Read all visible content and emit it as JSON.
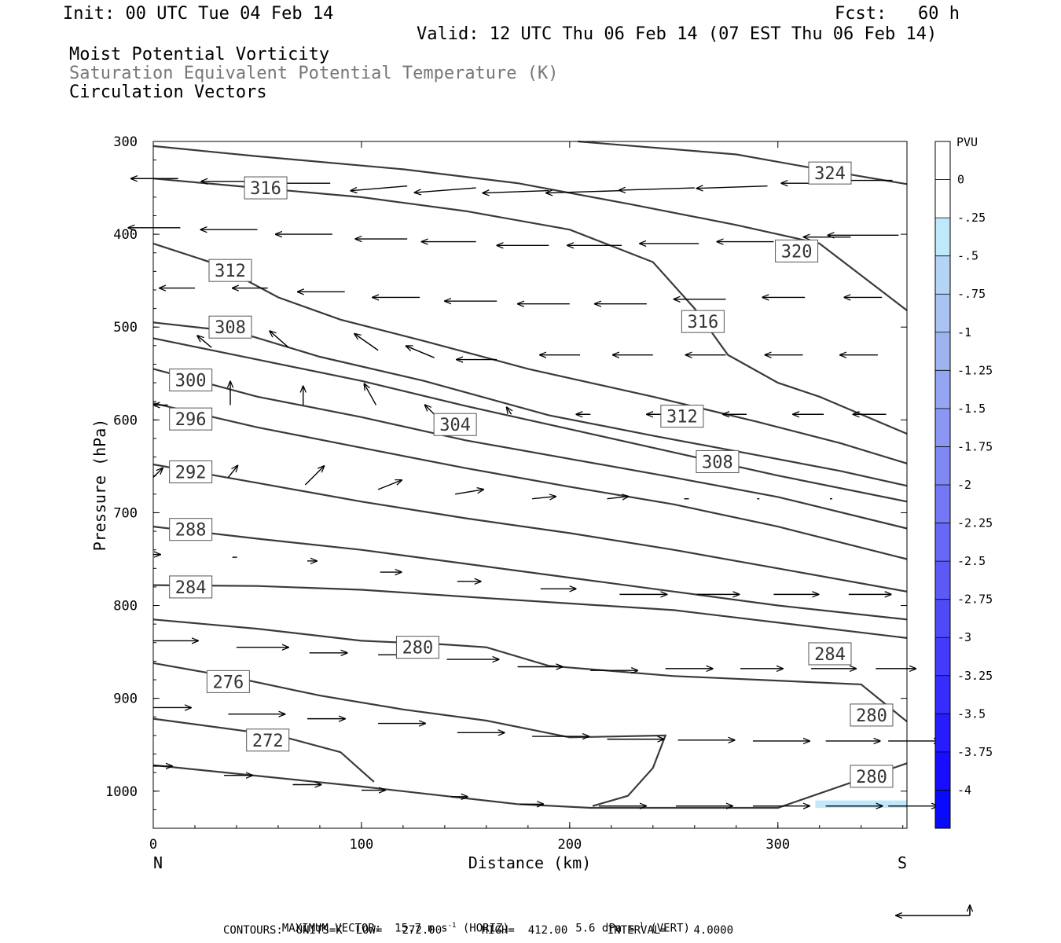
{
  "header": {
    "init": "Init: 00 UTC Tue 04 Feb 14",
    "fcst": "Fcst:   60 h",
    "valid": "Valid: 12 UTC Thu 06 Feb 14 (07 EST Thu 06 Feb 14)",
    "field1": "Moist Potential Vorticity",
    "field2": "Saturation Equivalent Potential Temperature (K)",
    "field3": "Circulation Vectors"
  },
  "footer": {
    "max_vector_label": "MAXIMUM VECTOR:",
    "horiz": "15.7 m s",
    "horiz_unit": "(HORIZ)",
    "vert": "5.6 dPa s",
    "vert_unit": "(VERT)",
    "exp": "-1",
    "contours": "CONTOURS:  UNITS=K  LOW=   272.00      HIGH=  412.00      INTERVAL=    4.0000"
  },
  "chart_data": {
    "type": "cross-section",
    "xlabel": "Distance (km)",
    "ylabel": "Pressure (hPa)",
    "xlim": [
      0,
      362
    ],
    "ylim": [
      1040,
      300
    ],
    "x_ticks": [
      0,
      100,
      200,
      300
    ],
    "y_ticks": [
      300,
      400,
      500,
      600,
      700,
      800,
      900,
      1000
    ],
    "left_end_label": "N",
    "right_end_label": "S",
    "colorbar": {
      "title": "PVU",
      "levels": [
        "0",
        "-.25",
        "-.5",
        "-.75",
        "-1",
        "-1.25",
        "-1.5",
        "-1.75",
        "-2",
        "-2.25",
        "-2.5",
        "-2.75",
        "-3",
        "-3.25",
        "-3.5",
        "-3.75",
        "-4"
      ],
      "colors": [
        "#ffffff",
        "#ffffff",
        "#bfe8fb",
        "#b3d4f5",
        "#a9c4f2",
        "#9eb4f1",
        "#94a5f1",
        "#8b97f2",
        "#7f88f3",
        "#7478f4",
        "#6868f6",
        "#5c59f7",
        "#4f4af8",
        "#433bf9",
        "#362cfb",
        "#271cfc",
        "#180efd",
        "#0909fe"
      ]
    },
    "contours": [
      {
        "label": "324",
        "points": [
          [
            204,
            300
          ],
          [
            280,
            314
          ],
          [
            320,
            330
          ],
          [
            362,
            346
          ]
        ],
        "labels_at": [
          [
            325,
            334
          ]
        ]
      },
      {
        "label": "320",
        "points": [
          [
            0,
            305
          ],
          [
            50,
            316
          ],
          [
            120,
            330
          ],
          [
            175,
            345
          ],
          [
            230,
            368
          ],
          [
            280,
            390
          ],
          [
            320,
            410
          ],
          [
            362,
            482
          ]
        ],
        "labels_at": [
          [
            309,
            418
          ]
        ]
      },
      {
        "label": "316",
        "points": [
          [
            0,
            340
          ],
          [
            50,
            350
          ],
          [
            100,
            360
          ],
          [
            150,
            375
          ],
          [
            200,
            395
          ],
          [
            240,
            430
          ],
          [
            260,
            480
          ],
          [
            276,
            530
          ],
          [
            300,
            560
          ],
          [
            320,
            575
          ],
          [
            362,
            615
          ]
        ],
        "labels_at": [
          [
            54,
            350
          ],
          [
            264,
            494
          ]
        ]
      },
      {
        "label": "312",
        "points": [
          [
            0,
            410
          ],
          [
            30,
            432
          ],
          [
            60,
            468
          ],
          [
            90,
            492
          ],
          [
            130,
            515
          ],
          [
            180,
            545
          ],
          [
            240,
            575
          ],
          [
            290,
            602
          ],
          [
            330,
            625
          ],
          [
            362,
            647
          ]
        ],
        "labels_at": [
          [
            37,
            439
          ],
          [
            254,
            596
          ]
        ]
      },
      {
        "label": "308",
        "points": [
          [
            0,
            495
          ],
          [
            40,
            505
          ],
          [
            80,
            532
          ],
          [
            130,
            558
          ],
          [
            190,
            595
          ],
          [
            240,
            617
          ],
          [
            290,
            638
          ],
          [
            330,
            655
          ],
          [
            362,
            671
          ]
        ],
        "labels_at": [
          [
            37,
            500
          ],
          [
            271,
            645
          ]
        ]
      },
      {
        "label": "304",
        "points": [
          [
            0,
            512
          ],
          [
            50,
            535
          ],
          [
            100,
            558
          ],
          [
            150,
            585
          ],
          [
            200,
            610
          ],
          [
            250,
            635
          ],
          [
            300,
            660
          ],
          [
            362,
            688
          ]
        ],
        "labels_at": [
          [
            145,
            605
          ]
        ]
      },
      {
        "label": "300",
        "points": [
          [
            0,
            545
          ],
          [
            50,
            575
          ],
          [
            100,
            597
          ],
          [
            150,
            622
          ],
          [
            200,
            642
          ],
          [
            250,
            662
          ],
          [
            300,
            683
          ],
          [
            362,
            717
          ]
        ],
        "labels_at": [
          [
            18,
            557
          ]
        ]
      },
      {
        "label": "296",
        "points": [
          [
            0,
            582
          ],
          [
            50,
            608
          ],
          [
            100,
            630
          ],
          [
            150,
            652
          ],
          [
            200,
            672
          ],
          [
            250,
            691
          ],
          [
            300,
            715
          ],
          [
            362,
            750
          ]
        ],
        "labels_at": [
          [
            18,
            599
          ]
        ]
      },
      {
        "label": "292",
        "points": [
          [
            0,
            648
          ],
          [
            50,
            668
          ],
          [
            100,
            688
          ],
          [
            150,
            706
          ],
          [
            200,
            722
          ],
          [
            250,
            740
          ],
          [
            300,
            760
          ],
          [
            362,
            785
          ]
        ],
        "labels_at": [
          [
            18,
            656
          ]
        ]
      },
      {
        "label": "288",
        "points": [
          [
            0,
            715
          ],
          [
            50,
            728
          ],
          [
            100,
            740
          ],
          [
            150,
            755
          ],
          [
            200,
            770
          ],
          [
            250,
            785
          ],
          [
            300,
            800
          ],
          [
            362,
            815
          ]
        ],
        "labels_at": [
          [
            18,
            718
          ]
        ]
      },
      {
        "label": "284",
        "points": [
          [
            0,
            778
          ],
          [
            50,
            779
          ],
          [
            100,
            783
          ],
          [
            160,
            792
          ],
          [
            250,
            805
          ],
          [
            362,
            835
          ]
        ],
        "labels_at": [
          [
            18,
            780
          ],
          [
            325,
            852
          ]
        ]
      },
      {
        "label": "280",
        "points": [
          [
            0,
            815
          ],
          [
            50,
            825
          ],
          [
            100,
            838
          ],
          [
            140,
            842
          ],
          [
            160,
            845
          ],
          [
            190,
            865
          ],
          [
            250,
            876
          ],
          [
            340,
            885
          ],
          [
            362,
            925
          ]
        ],
        "labels_at": [
          [
            127,
            845
          ],
          [
            345,
            918
          ]
        ]
      },
      {
        "label": "276",
        "points": [
          [
            0,
            862
          ],
          [
            40,
            878
          ],
          [
            80,
            897
          ],
          [
            120,
            912
          ],
          [
            160,
            924
          ],
          [
            200,
            942
          ],
          [
            246,
            940
          ],
          [
            240,
            975
          ],
          [
            228,
            1005
          ],
          [
            211,
            1016
          ]
        ],
        "labels_at": [
          [
            36,
            882
          ]
        ]
      },
      {
        "label": "272",
        "points": [
          [
            0,
            922
          ],
          [
            60,
            940
          ],
          [
            90,
            958
          ],
          [
            100,
            978
          ],
          [
            106,
            990
          ]
        ],
        "labels_at": [
          [
            55,
            945
          ]
        ]
      },
      {
        "label": "280",
        "points": [
          [
            0,
            972
          ],
          [
            100,
            995
          ],
          [
            175,
            1014
          ],
          [
            210,
            1018
          ],
          [
            300,
            1018
          ],
          [
            362,
            970
          ]
        ],
        "labels_at": [
          [
            345,
            984
          ]
        ]
      }
    ],
    "pv_shading": [
      {
        "x": [
          318,
          362
        ],
        "p": [
          1010,
          1018
        ],
        "level": "-.25"
      }
    ],
    "vectors": [
      [
        12,
        340,
        -20,
        0
      ],
      [
        48,
        343,
        -22,
        0
      ],
      [
        85,
        345,
        -24,
        0
      ],
      [
        122,
        348,
        -24,
        2
      ],
      [
        155,
        350,
        -26,
        2
      ],
      [
        190,
        353,
        -28,
        1
      ],
      [
        225,
        353,
        -32,
        1
      ],
      [
        260,
        350,
        -32,
        1
      ],
      [
        295,
        348,
        -30,
        1
      ],
      [
        330,
        345,
        -25,
        0
      ],
      [
        355,
        342,
        -35,
        0
      ],
      [
        13,
        393,
        -22,
        0
      ],
      [
        50,
        395,
        -24,
        0
      ],
      [
        86,
        400,
        -24,
        0
      ],
      [
        122,
        405,
        -22,
        0
      ],
      [
        155,
        408,
        -23,
        0
      ],
      [
        190,
        412,
        -22,
        0
      ],
      [
        225,
        412,
        -23,
        0
      ],
      [
        262,
        410,
        -25,
        0
      ],
      [
        298,
        408,
        -24,
        0
      ],
      [
        335,
        403,
        -20,
        0
      ],
      [
        358,
        401,
        -30,
        0
      ],
      [
        20,
        458,
        -15,
        0
      ],
      [
        55,
        458,
        -15,
        0
      ],
      [
        92,
        462,
        -20,
        0
      ],
      [
        128,
        468,
        -20,
        0
      ],
      [
        165,
        472,
        -22,
        0
      ],
      [
        200,
        475,
        -22,
        0
      ],
      [
        237,
        475,
        -22,
        0
      ],
      [
        275,
        470,
        -22,
        0
      ],
      [
        313,
        468,
        -18,
        0
      ],
      [
        350,
        468,
        -16,
        0
      ],
      [
        28,
        522,
        -6,
        -5
      ],
      [
        65,
        522,
        -8,
        -7
      ],
      [
        108,
        525,
        -10,
        -7
      ],
      [
        135,
        533,
        -12,
        -5
      ],
      [
        165,
        535,
        -17,
        0
      ],
      [
        205,
        530,
        -17,
        0
      ],
      [
        240,
        530,
        -17,
        0
      ],
      [
        275,
        530,
        -17,
        0
      ],
      [
        312,
        530,
        -16,
        0
      ],
      [
        348,
        530,
        -16,
        0
      ],
      [
        7,
        584,
        -6,
        0
      ],
      [
        37,
        584,
        0,
        -10
      ],
      [
        72,
        584,
        0,
        -8
      ],
      [
        107,
        584,
        -5,
        -9
      ],
      [
        135,
        594,
        -4,
        -4
      ],
      [
        172,
        594,
        -2,
        -3
      ],
      [
        210,
        594,
        -6,
        0
      ],
      [
        245,
        594,
        -7,
        0
      ],
      [
        285,
        594,
        -10,
        0
      ],
      [
        322,
        594,
        -13,
        0
      ],
      [
        352,
        594,
        -14,
        0
      ],
      [
        0,
        662,
        4,
        -4
      ],
      [
        36,
        662,
        4,
        -5
      ],
      [
        73,
        670,
        8,
        -8
      ],
      [
        108,
        675,
        10,
        -4
      ],
      [
        145,
        680,
        12,
        -2
      ],
      [
        182,
        685,
        10,
        -1
      ],
      [
        218,
        685,
        9,
        -1
      ],
      [
        255,
        685,
        2,
        0
      ],
      [
        290,
        685,
        1,
        0
      ],
      [
        325,
        685,
        1,
        0
      ],
      [
        358,
        685,
        0,
        0
      ],
      [
        0,
        745,
        3,
        0
      ],
      [
        38,
        748,
        2,
        0
      ],
      [
        74,
        752,
        4,
        0
      ],
      [
        109,
        764,
        9,
        0
      ],
      [
        146,
        774,
        10,
        0
      ],
      [
        186,
        782,
        15,
        0
      ],
      [
        224,
        788,
        20,
        0
      ],
      [
        261,
        788,
        18,
        0
      ],
      [
        298,
        788,
        19,
        0
      ],
      [
        334,
        788,
        18,
        0
      ],
      [
        0,
        838,
        19,
        0
      ],
      [
        40,
        845,
        22,
        0
      ],
      [
        75,
        851,
        16,
        0
      ],
      [
        108,
        853,
        21,
        0
      ],
      [
        141,
        858,
        22,
        0
      ],
      [
        175,
        866,
        19,
        0
      ],
      [
        210,
        870,
        20,
        0
      ],
      [
        246,
        868,
        20,
        0
      ],
      [
        282,
        868,
        18,
        0
      ],
      [
        316,
        868,
        19,
        0
      ],
      [
        347,
        868,
        17,
        0
      ],
      [
        0,
        910,
        16,
        0
      ],
      [
        36,
        917,
        24,
        0
      ],
      [
        74,
        922,
        16,
        0
      ],
      [
        108,
        927,
        20,
        0
      ],
      [
        146,
        937,
        20,
        0
      ],
      [
        182,
        941,
        24,
        0
      ],
      [
        218,
        944,
        24,
        0
      ],
      [
        252,
        945,
        24,
        0
      ],
      [
        288,
        946,
        24,
        0
      ],
      [
        323,
        946,
        23,
        0
      ],
      [
        353,
        946,
        22,
        0
      ],
      [
        0,
        973,
        8,
        0
      ],
      [
        34,
        983,
        12,
        0
      ],
      [
        67,
        993,
        12,
        0
      ],
      [
        100,
        999,
        10,
        0
      ],
      [
        143,
        1006,
        7,
        0
      ],
      [
        176,
        1014,
        10,
        0
      ],
      [
        214,
        1016,
        20,
        0
      ],
      [
        251,
        1016,
        24,
        0
      ],
      [
        288,
        1016,
        24,
        0
      ],
      [
        323,
        1016,
        24,
        0
      ],
      [
        353,
        1016,
        21,
        0
      ]
    ]
  }
}
